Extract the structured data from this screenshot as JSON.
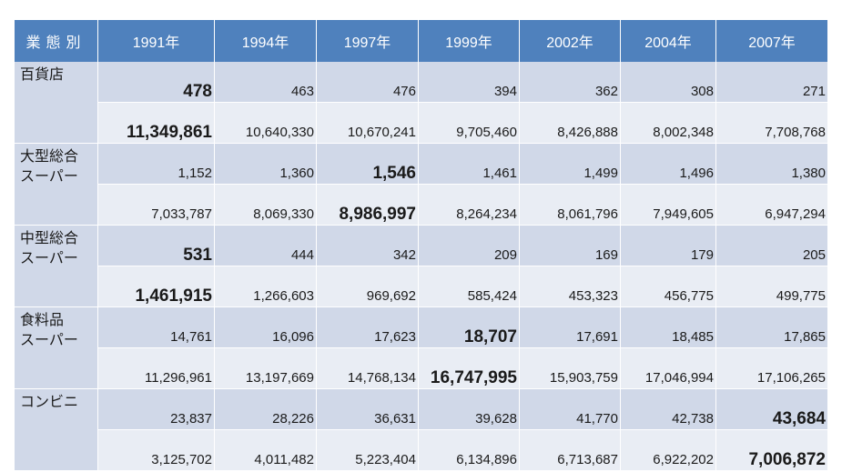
{
  "header": {
    "category_label": "業態別",
    "years": [
      "1991年",
      "1994年",
      "1997年",
      "1999年",
      "2002年",
      "2004年",
      "2007年"
    ]
  },
  "rows": [
    {
      "category_lines": [
        "百貨店"
      ],
      "stores": [
        "478",
        "463",
        "476",
        "394",
        "362",
        "308",
        "271"
      ],
      "sales": [
        "11,349,861",
        "10,640,330",
        "10,670,241",
        "9,705,460",
        "8,426,888",
        "8,002,348",
        "7,708,768"
      ]
    },
    {
      "category_lines": [
        "大型総合",
        "スーパー"
      ],
      "stores": [
        "1,152",
        "1,360",
        "1,546",
        "1,461",
        "1,499",
        "1,496",
        "1,380"
      ],
      "sales": [
        "7,033,787",
        "8,069,330",
        "8,986,997",
        "8,264,234",
        "8,061,796",
        "7,949,605",
        "6,947,294"
      ]
    },
    {
      "category_lines": [
        "中型総合",
        "スーパー"
      ],
      "stores": [
        "531",
        "444",
        "342",
        "209",
        "169",
        "179",
        "205"
      ],
      "sales": [
        "1,461,915",
        "1,266,603",
        "969,692",
        "585,424",
        "453,323",
        "456,775",
        "499,775"
      ]
    },
    {
      "category_lines": [
        "食料品",
        "スーパー"
      ],
      "stores": [
        "14,761",
        "16,096",
        "17,623",
        "18,707",
        "17,691",
        "18,485",
        "17,865"
      ],
      "sales": [
        "11,296,961",
        "13,197,669",
        "14,768,134",
        "16,747,995",
        "15,903,759",
        "17,046,994",
        "17,106,265"
      ]
    },
    {
      "category_lines": [
        "コンビニ"
      ],
      "stores": [
        "23,837",
        "28,226",
        "36,631",
        "39,628",
        "41,770",
        "42,738",
        "43,684"
      ],
      "sales": [
        "3,125,702",
        "4,011,482",
        "5,223,404",
        "6,134,896",
        "6,713,687",
        "6,922,202",
        "7,006,872"
      ]
    }
  ],
  "highlights": {
    "stores": [
      0,
      2,
      0,
      3,
      6
    ],
    "sales": [
      0,
      2,
      0,
      3,
      6
    ]
  },
  "colors": {
    "header_bg": "#4f81bd",
    "header_text": "#ffffff",
    "row_dark": "#d0d8e8",
    "row_light": "#e9edf4"
  }
}
